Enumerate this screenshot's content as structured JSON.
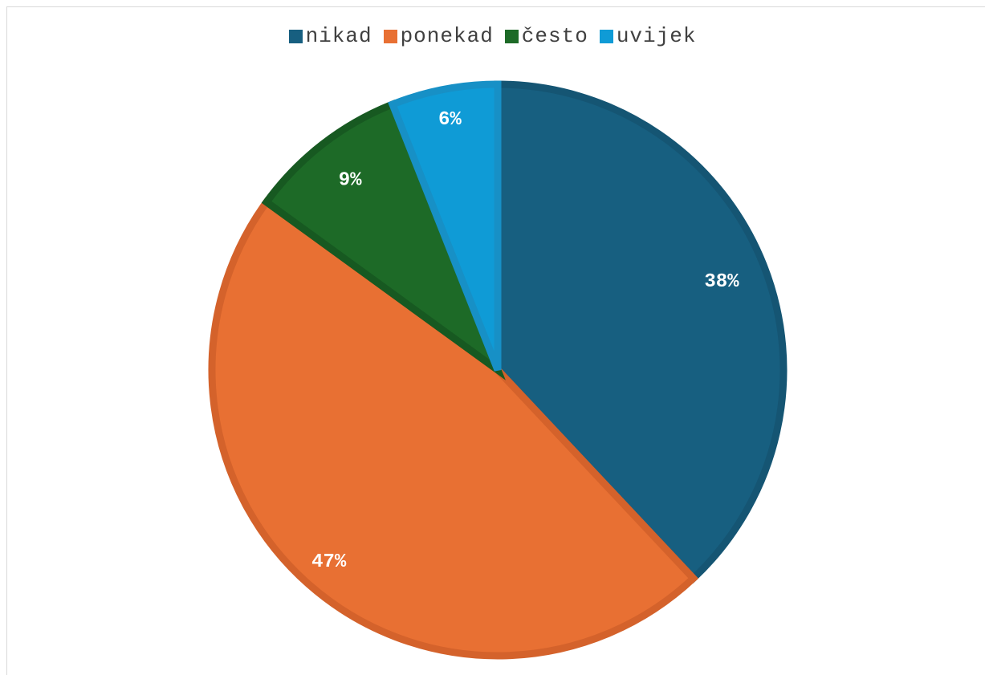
{
  "chart_data": {
    "type": "pie",
    "title": "",
    "categories": [
      "nikad",
      "ponekad",
      "često",
      "uvijek"
    ],
    "values": [
      38,
      47,
      9,
      6
    ],
    "labels": [
      "38%",
      "47%",
      "9%",
      "6%"
    ],
    "colors": [
      "#175f80",
      "#e87033",
      "#1d6a27",
      "#0f9bd6"
    ],
    "border_colors": [
      "#155573",
      "#d4622b",
      "#175921",
      "#1790c6"
    ],
    "legend_position": "top",
    "start_angle_deg": 0,
    "direction": "clockwise"
  },
  "legend": {
    "items": [
      {
        "label": "nikad",
        "color": "#175f80"
      },
      {
        "label": "ponekad",
        "color": "#e87033"
      },
      {
        "label": "često",
        "color": "#1d6a27"
      },
      {
        "label": "uvijek",
        "color": "#0f9bd6"
      }
    ]
  }
}
